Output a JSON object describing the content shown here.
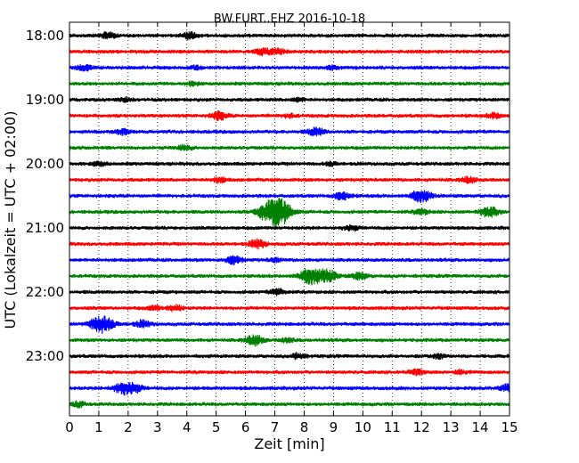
{
  "chart_data": {
    "type": "line",
    "title": "BW.FURT..EHZ 2016-10-18",
    "xlabel": "Zeit  [min]",
    "ylabel": "UTC (Lokalzeit = UTC + 02:00)",
    "xlim": [
      0,
      15
    ],
    "x_ticks": [
      "0",
      "1",
      "2",
      "3",
      "4",
      "5",
      "6",
      "7",
      "8",
      "9",
      "10",
      "11",
      "12",
      "13",
      "14",
      "15"
    ],
    "y_ticks": [
      "18:00",
      "19:00",
      "20:00",
      "21:00",
      "22:00",
      "23:00"
    ],
    "grid": "vertical-dotted",
    "trace_colors": [
      "#000000",
      "#ff0000",
      "#0000ff",
      "#008000"
    ],
    "traces": [
      {
        "start": "18:00",
        "events": [
          {
            "x": 1.3,
            "amp": 0.35
          },
          {
            "x": 4.1,
            "amp": 0.35
          }
        ]
      },
      {
        "start": "18:15",
        "events": [
          {
            "x": 6.6,
            "amp": 0.4
          },
          {
            "x": 7.1,
            "amp": 0.3
          }
        ]
      },
      {
        "start": "18:30",
        "events": [
          {
            "x": 0.5,
            "amp": 0.35
          },
          {
            "x": 4.3,
            "amp": 0.2
          },
          {
            "x": 8.9,
            "amp": 0.2
          }
        ]
      },
      {
        "start": "18:45",
        "events": [
          {
            "x": 4.2,
            "amp": 0.2
          }
        ]
      },
      {
        "start": "19:00",
        "events": [
          {
            "x": 1.9,
            "amp": 0.2
          },
          {
            "x": 7.8,
            "amp": 0.2
          }
        ]
      },
      {
        "start": "19:15",
        "events": [
          {
            "x": 5.1,
            "amp": 0.45
          },
          {
            "x": 7.5,
            "amp": 0.2
          },
          {
            "x": 14.5,
            "amp": 0.3
          }
        ]
      },
      {
        "start": "19:30",
        "events": [
          {
            "x": 1.8,
            "amp": 0.3
          },
          {
            "x": 8.4,
            "amp": 0.45
          }
        ]
      },
      {
        "start": "19:45",
        "events": [
          {
            "x": 3.9,
            "amp": 0.3
          }
        ]
      },
      {
        "start": "20:00",
        "events": [
          {
            "x": 1.0,
            "amp": 0.25
          },
          {
            "x": 8.9,
            "amp": 0.2
          }
        ]
      },
      {
        "start": "20:15",
        "events": [
          {
            "x": 5.1,
            "amp": 0.3
          },
          {
            "x": 13.6,
            "amp": 0.35
          }
        ]
      },
      {
        "start": "20:30",
        "events": [
          {
            "x": 9.3,
            "amp": 0.45
          },
          {
            "x": 11.9,
            "amp": 0.55
          },
          {
            "x": 12.2,
            "amp": 0.3
          }
        ]
      },
      {
        "start": "20:45",
        "events": [
          {
            "x": 6.95,
            "amp": 1.5
          },
          {
            "x": 7.3,
            "amp": 0.5
          },
          {
            "x": 12.0,
            "amp": 0.3
          },
          {
            "x": 14.3,
            "amp": 0.6
          }
        ]
      },
      {
        "start": "21:00",
        "events": [
          {
            "x": 9.6,
            "amp": 0.3
          }
        ]
      },
      {
        "start": "21:15",
        "events": [
          {
            "x": 6.4,
            "amp": 0.5
          }
        ]
      },
      {
        "start": "21:30",
        "events": [
          {
            "x": 5.6,
            "amp": 0.45
          },
          {
            "x": 7.0,
            "amp": 0.2
          }
        ]
      },
      {
        "start": "21:45",
        "events": [
          {
            "x": 8.2,
            "amp": 0.9
          },
          {
            "x": 8.8,
            "amp": 0.7
          },
          {
            "x": 9.9,
            "amp": 0.4
          }
        ]
      },
      {
        "start": "22:00",
        "events": [
          {
            "x": 7.1,
            "amp": 0.35
          }
        ]
      },
      {
        "start": "22:15",
        "events": [
          {
            "x": 3.6,
            "amp": 0.35
          },
          {
            "x": 2.9,
            "amp": 0.25
          }
        ]
      },
      {
        "start": "22:30",
        "events": [
          {
            "x": 1.1,
            "amp": 1.0
          },
          {
            "x": 2.5,
            "amp": 0.4
          }
        ]
      },
      {
        "start": "22:45",
        "events": [
          {
            "x": 6.3,
            "amp": 0.6
          },
          {
            "x": 7.4,
            "amp": 0.25
          }
        ]
      },
      {
        "start": "23:00",
        "events": [
          {
            "x": 7.8,
            "amp": 0.3
          },
          {
            "x": 12.6,
            "amp": 0.25
          }
        ]
      },
      {
        "start": "23:15",
        "events": [
          {
            "x": 11.8,
            "amp": 0.3
          },
          {
            "x": 13.3,
            "amp": 0.2
          }
        ]
      },
      {
        "start": "23:30",
        "events": [
          {
            "x": 1.8,
            "amp": 0.6
          },
          {
            "x": 2.2,
            "amp": 0.5
          },
          {
            "x": 14.9,
            "amp": 0.35
          }
        ]
      },
      {
        "start": "23:45",
        "events": [
          {
            "x": 0.3,
            "amp": 0.3
          }
        ]
      }
    ]
  }
}
